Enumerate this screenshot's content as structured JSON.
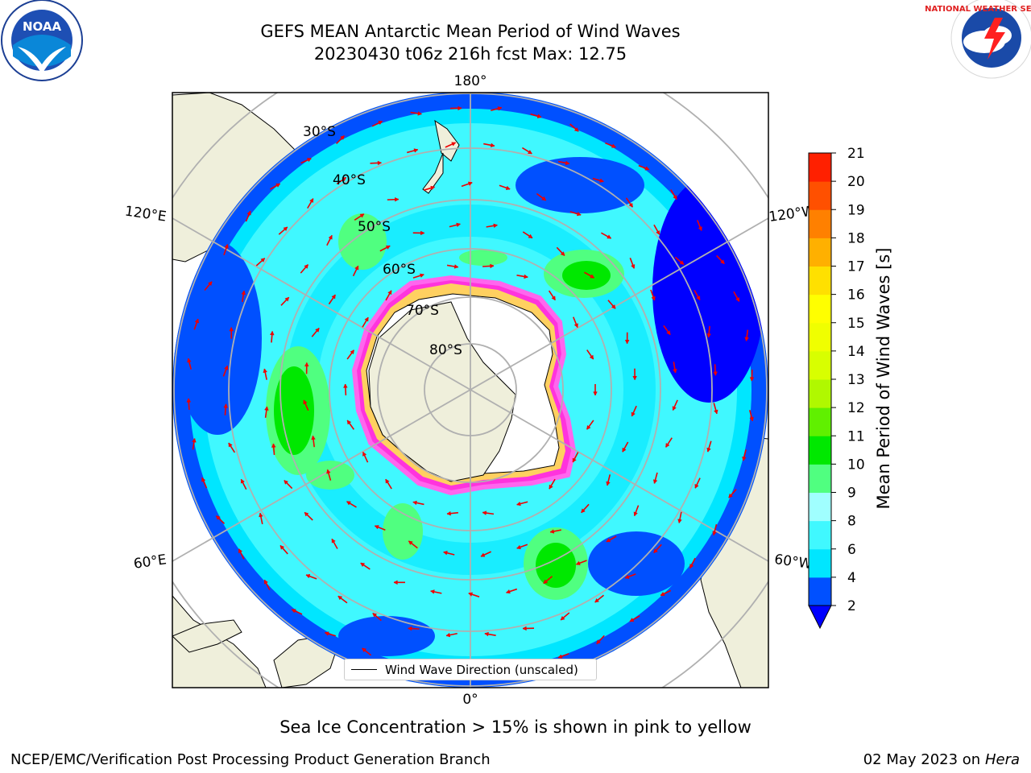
{
  "title": {
    "line1": "GEFS MEAN Antarctic Mean Period of Wind Waves",
    "line2": "20230430 t06z 216h fcst   Max: 12.75"
  },
  "caption": "Sea Ice Concentration > 15% is shown in pink to yellow",
  "footer": {
    "left": "NCEP/EMC/Verification Post Processing Product Generation Branch",
    "right_date": "02 May 2023 on",
    "right_host": "Hera"
  },
  "legend": {
    "label": "Wind Wave Direction (unscaled)"
  },
  "longitude_labels": {
    "top": "180°",
    "bottom": "0°",
    "left_upper": "120°E",
    "left_lower": "60°E",
    "right_upper": "120°W",
    "right_lower": "60°W"
  },
  "latitude_labels": [
    "30°S",
    "40°S",
    "50°S",
    "60°S",
    "70°S",
    "80°S"
  ],
  "colorbar": {
    "label": "Mean Period of Wind Waves [s]",
    "ticks": [
      "2",
      "4",
      "6",
      "8",
      "9",
      "10",
      "11",
      "12",
      "13",
      "14",
      "15",
      "16",
      "17",
      "18",
      "19",
      "20",
      "21"
    ],
    "colors": [
      "#0050ff",
      "#00e6ff",
      "#40f8ff",
      "#a0ffff",
      "#50ff80",
      "#00e800",
      "#60f000",
      "#b0f800",
      "#d8ff00",
      "#f0ff00",
      "#ffff00",
      "#ffe000",
      "#ffb000",
      "#ff8000",
      "#ff5000",
      "#ff2000"
    ],
    "extend_color": "#0000ff"
  },
  "logos": {
    "left": "NOAA",
    "right": "NATIONAL WEATHER SERVICE"
  }
}
